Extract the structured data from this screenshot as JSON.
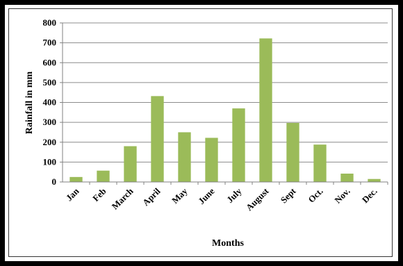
{
  "chart_data": {
    "type": "bar",
    "title": "",
    "xlabel": "Months",
    "ylabel": "Rainfall in mm",
    "categories": [
      "Jan",
      "Feb",
      "March",
      "April",
      "May",
      "June",
      "July",
      "August",
      "Sept",
      "Oct.",
      "Nov.",
      "Dec."
    ],
    "values": [
      25,
      57,
      180,
      432,
      250,
      222,
      370,
      722,
      297,
      188,
      42,
      15
    ],
    "ylim": [
      0,
      800
    ],
    "yticks": [
      0,
      100,
      200,
      300,
      400,
      500,
      600,
      700,
      800
    ],
    "grid": true,
    "legend": "none",
    "colors": {
      "bar": "#9bbb59",
      "grid": "#8c8c8c",
      "background": "#000000",
      "plot_background": "#ffffff"
    }
  }
}
